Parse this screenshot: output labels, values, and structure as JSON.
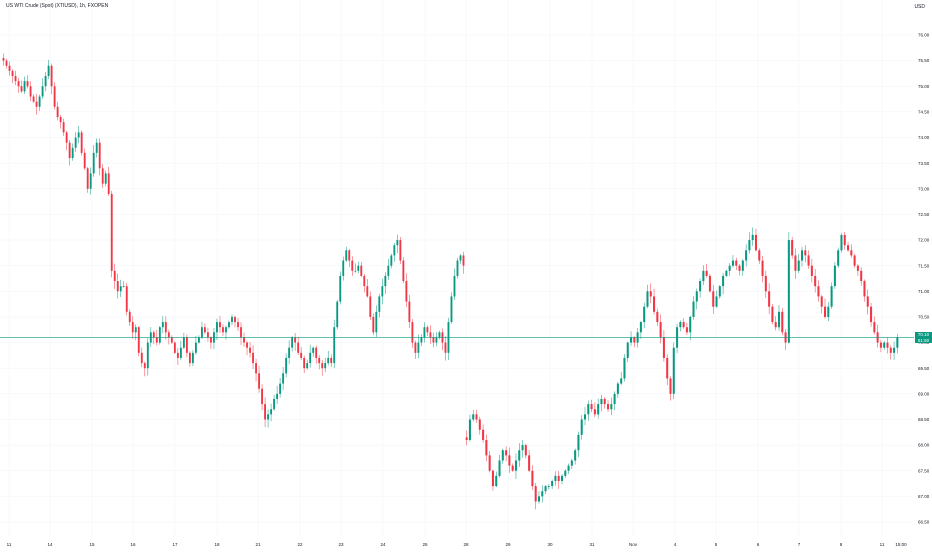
{
  "chart_data": {
    "type": "candlestick",
    "title": "US WTI Crude (Spot) (XTIUSD), 1h, FXOPEN",
    "currency": "USD",
    "ylim": [
      66.2,
      76.0
    ],
    "y_ticks": [
      "76.00",
      "75.50",
      "75.00",
      "74.50",
      "74.00",
      "73.50",
      "73.00",
      "72.50",
      "72.00",
      "71.50",
      "71.00",
      "70.50",
      "70.00",
      "69.50",
      "69.00",
      "68.50",
      "68.00",
      "67.50",
      "67.00",
      "66.50"
    ],
    "x_ticks": [
      "11",
      "14",
      "15",
      "16",
      "17",
      "18",
      "21",
      "22",
      "23",
      "24",
      "25",
      "28",
      "29",
      "30",
      "31",
      "Nov",
      "4",
      "5",
      "6",
      "7",
      "8",
      "11",
      "15:00"
    ],
    "last_price": 70.1,
    "last_price_label": "70.10",
    "last_price_sublabel": "51:50",
    "colors": {
      "up": "#089981",
      "down": "#f23645",
      "price_line": "#089981",
      "grid": "#f0f3fa"
    },
    "series": [
      {
        "segment": "Oct 11 - Oct 25",
        "close_path": [
          75.5,
          75.4,
          75.3,
          75.2,
          75.1,
          75.0,
          74.9,
          75.1,
          75.0,
          74.8,
          74.7,
          74.6,
          74.8,
          75.0,
          75.2,
          75.4,
          75.0,
          74.6,
          74.4,
          74.3,
          74.1,
          73.9,
          73.6,
          73.8,
          74.0,
          74.1,
          73.7,
          73.4,
          73.0,
          73.3,
          73.7,
          73.9,
          73.4,
          73.1,
          73.3,
          72.9,
          71.4,
          71.2,
          71.0,
          71.1,
          71.1,
          70.6,
          70.4,
          70.2,
          70.3,
          69.8,
          69.6,
          69.5,
          70.0,
          70.2,
          70.1,
          70.0,
          70.3,
          70.4,
          70.2,
          70.1,
          70.0,
          69.8,
          69.7,
          69.9,
          70.1,
          69.8,
          69.6,
          69.8,
          70.0,
          70.1,
          70.3,
          70.2,
          70.1,
          70.0,
          70.2,
          70.4,
          70.3,
          70.2,
          70.3,
          70.4,
          70.5,
          70.4,
          70.3,
          70.1,
          70.0,
          69.9,
          69.8,
          69.6,
          69.4,
          69.1,
          68.8,
          68.5,
          68.6,
          68.7,
          68.9,
          69.0,
          69.2,
          69.4,
          69.7,
          69.9,
          70.1,
          70.0,
          69.8,
          69.7,
          69.5,
          69.6,
          69.8,
          69.9,
          69.7,
          69.6,
          69.5,
          69.6,
          69.7,
          69.6,
          70.3,
          70.8,
          71.3,
          71.6,
          71.8,
          71.6,
          71.4,
          71.4,
          71.5,
          71.3,
          71.1,
          70.9,
          70.5,
          70.2,
          70.6,
          70.9,
          71.1,
          71.3,
          71.5,
          71.7,
          71.9,
          72.0,
          71.6,
          71.2,
          70.8,
          70.4,
          70.0,
          69.8,
          70.0,
          70.1,
          70.3,
          70.2,
          70.1,
          70.0,
          70.1,
          70.2,
          70.0,
          69.8,
          70.4,
          70.9,
          71.3,
          71.6,
          71.7,
          71.5
        ]
      },
      {
        "segment": "Oct 28 - Nov 11",
        "close_path": [
          68.1,
          68.5,
          68.6,
          68.5,
          68.3,
          68.1,
          67.8,
          67.5,
          67.2,
          67.4,
          67.7,
          67.9,
          67.8,
          67.6,
          67.5,
          67.7,
          67.9,
          68.0,
          67.8,
          67.5,
          67.2,
          66.9,
          67.0,
          67.1,
          67.2,
          67.2,
          67.3,
          67.4,
          67.3,
          67.4,
          67.5,
          67.6,
          67.7,
          67.9,
          68.2,
          68.5,
          68.6,
          68.8,
          68.7,
          68.6,
          68.8,
          68.9,
          68.8,
          68.7,
          68.8,
          69.0,
          69.2,
          69.3,
          69.7,
          70.0,
          70.1,
          70.0,
          70.2,
          70.4,
          70.7,
          71.0,
          70.9,
          70.6,
          70.4,
          70.1,
          69.7,
          69.3,
          69.0,
          69.9,
          70.3,
          70.4,
          70.3,
          70.2,
          70.5,
          70.8,
          71.0,
          71.2,
          71.4,
          71.3,
          71.0,
          70.7,
          70.9,
          71.1,
          71.3,
          71.4,
          71.5,
          71.6,
          71.5,
          71.4,
          71.6,
          71.8,
          72.0,
          72.1,
          71.8,
          71.6,
          71.3,
          71.0,
          70.7,
          70.4,
          70.3,
          70.6,
          70.2,
          70.0,
          72.0,
          71.7,
          71.4,
          71.6,
          71.8,
          71.7,
          71.5,
          71.3,
          71.1,
          70.9,
          70.7,
          70.5,
          70.7,
          71.1,
          71.5,
          71.8,
          72.1,
          71.9,
          71.8,
          71.7,
          71.5,
          71.4,
          71.2,
          70.9,
          70.7,
          70.4,
          70.2,
          70.0,
          69.9,
          70.0,
          69.9,
          69.8,
          69.9,
          70.1
        ]
      }
    ]
  }
}
